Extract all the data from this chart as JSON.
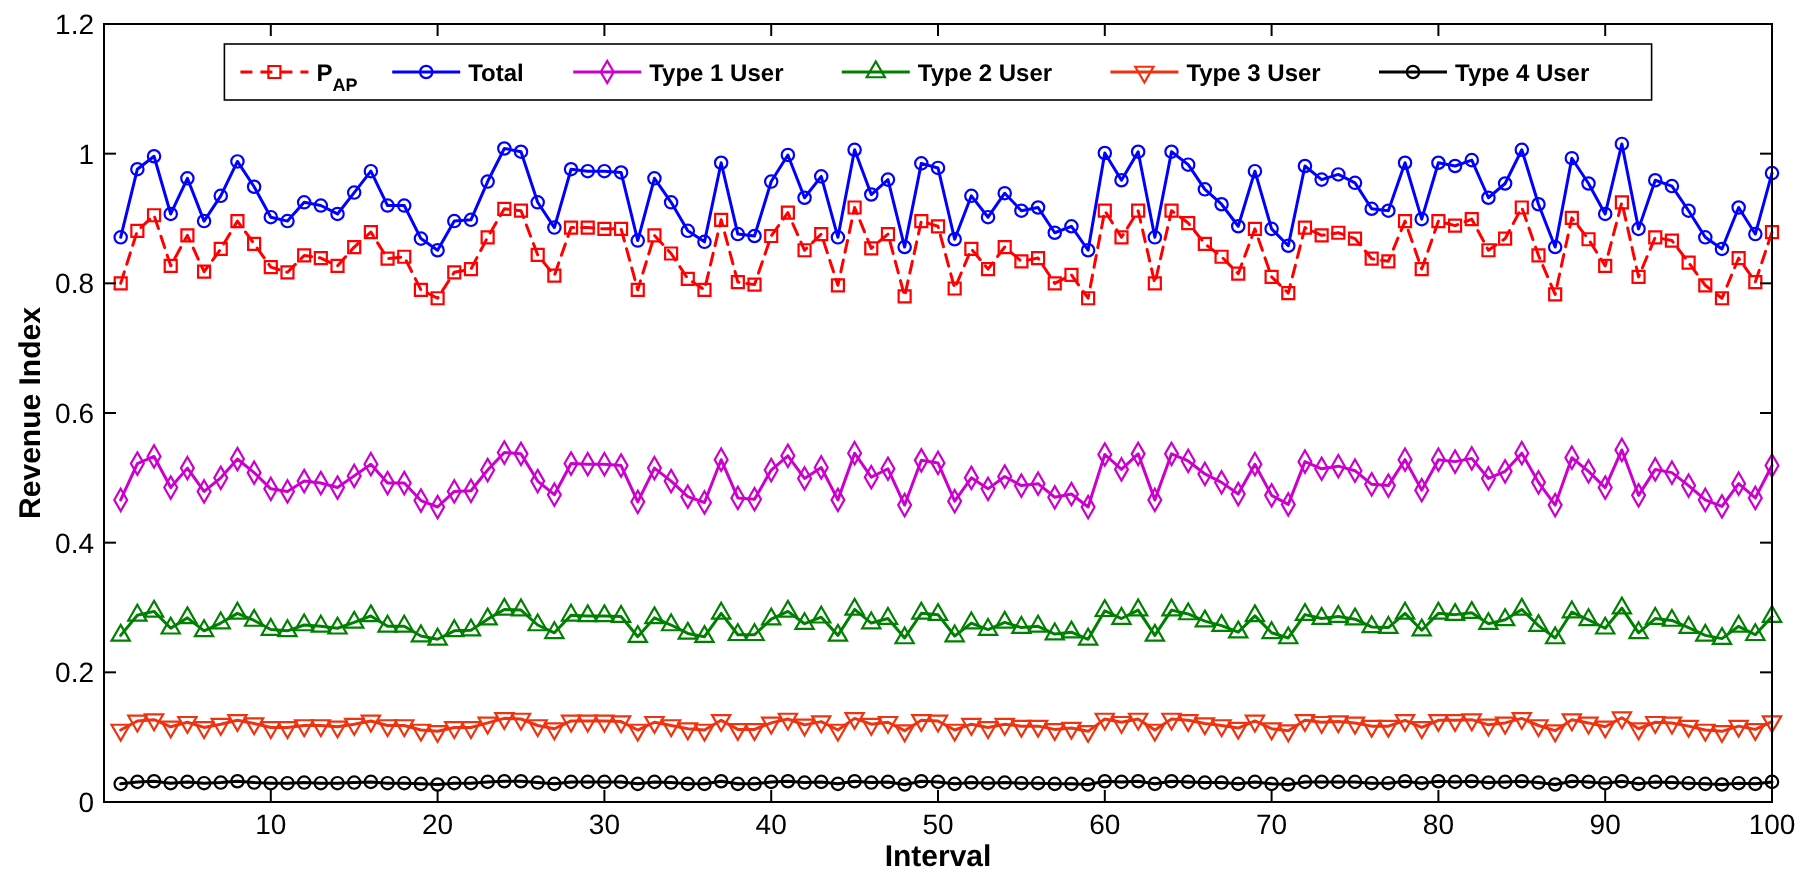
{
  "chart_data": {
    "type": "line",
    "xlabel": "Interval",
    "ylabel": "Revenue Index",
    "x": [
      1,
      2,
      3,
      4,
      5,
      6,
      7,
      8,
      9,
      10,
      11,
      12,
      13,
      14,
      15,
      16,
      17,
      18,
      19,
      20,
      21,
      22,
      23,
      24,
      25,
      26,
      27,
      28,
      29,
      30,
      31,
      32,
      33,
      34,
      35,
      36,
      37,
      38,
      39,
      40,
      41,
      42,
      43,
      44,
      45,
      46,
      47,
      48,
      49,
      50,
      51,
      52,
      53,
      54,
      55,
      56,
      57,
      58,
      59,
      60,
      61,
      62,
      63,
      64,
      65,
      66,
      67,
      68,
      69,
      70,
      71,
      72,
      73,
      74,
      75,
      76,
      77,
      78,
      79,
      80,
      81,
      82,
      83,
      84,
      85,
      86,
      87,
      88,
      89,
      90,
      91,
      92,
      93,
      94,
      95,
      96,
      97,
      98,
      99,
      100
    ],
    "xlim": [
      0,
      100
    ],
    "xticks": [
      10,
      20,
      30,
      40,
      50,
      60,
      70,
      80,
      90,
      100
    ],
    "ylim": [
      0,
      1.2
    ],
    "yticks": [
      0,
      0.2,
      0.4,
      0.6,
      0.8,
      1,
      1.2
    ],
    "grid": false,
    "legend": "top",
    "series": [
      {
        "name": "P$_{AP}$",
        "color": "#ff0000",
        "marker": "square",
        "line_style": "dashed",
        "values": [
          0.8,
          0.881,
          0.905,
          0.827,
          0.874,
          0.818,
          0.853,
          0.896,
          0.861,
          0.825,
          0.817,
          0.843,
          0.839,
          0.827,
          0.856,
          0.879,
          0.838,
          0.841,
          0.79,
          0.777,
          0.817,
          0.822,
          0.871,
          0.915,
          0.912,
          0.844,
          0.812,
          0.886,
          0.886,
          0.884,
          0.884,
          0.79,
          0.874,
          0.846,
          0.807,
          0.79,
          0.898,
          0.802,
          0.798,
          0.873,
          0.909,
          0.851,
          0.876,
          0.797,
          0.917,
          0.854,
          0.876,
          0.78,
          0.896,
          0.888,
          0.792,
          0.853,
          0.822,
          0.856,
          0.834,
          0.839,
          0.8,
          0.813,
          0.777,
          0.912,
          0.871,
          0.912,
          0.8,
          0.912,
          0.893,
          0.861,
          0.841,
          0.815,
          0.884,
          0.81,
          0.785,
          0.886,
          0.874,
          0.878,
          0.869,
          0.838,
          0.834,
          0.896,
          0.822,
          0.896,
          0.889,
          0.899,
          0.851,
          0.869,
          0.917,
          0.843,
          0.783,
          0.901,
          0.868,
          0.827,
          0.925,
          0.81,
          0.871,
          0.866,
          0.832,
          0.797,
          0.777,
          0.839,
          0.802,
          0.879
        ]
      },
      {
        "name": "Total",
        "color": "#0000ff",
        "marker": "circle",
        "line_style": "solid",
        "values": [
          0.871,
          0.976,
          0.996,
          0.907,
          0.962,
          0.896,
          0.935,
          0.988,
          0.949,
          0.902,
          0.896,
          0.925,
          0.92,
          0.907,
          0.94,
          0.973,
          0.92,
          0.92,
          0.869,
          0.851,
          0.896,
          0.898,
          0.957,
          1.008,
          1.003,
          0.925,
          0.886,
          0.976,
          0.973,
          0.973,
          0.971,
          0.866,
          0.962,
          0.925,
          0.881,
          0.864,
          0.986,
          0.876,
          0.873,
          0.957,
          0.998,
          0.932,
          0.965,
          0.871,
          1.006,
          0.937,
          0.96,
          0.856,
          0.985,
          0.978,
          0.868,
          0.935,
          0.902,
          0.939,
          0.912,
          0.917,
          0.878,
          0.888,
          0.851,
          1.001,
          0.959,
          1.003,
          0.871,
          1.003,
          0.983,
          0.945,
          0.922,
          0.888,
          0.973,
          0.884,
          0.858,
          0.981,
          0.96,
          0.968,
          0.955,
          0.915,
          0.912,
          0.986,
          0.899,
          0.986,
          0.981,
          0.99,
          0.932,
          0.954,
          1.006,
          0.922,
          0.856,
          0.993,
          0.954,
          0.907,
          1.015,
          0.884,
          0.959,
          0.95,
          0.912,
          0.871,
          0.853,
          0.917,
          0.876,
          0.97
        ]
      },
      {
        "name": "Type 1 User",
        "color": "#cc00cc",
        "marker": "diamond",
        "line_style": "solid",
        "values": [
          0.466,
          0.522,
          0.533,
          0.485,
          0.515,
          0.479,
          0.5,
          0.529,
          0.508,
          0.483,
          0.479,
          0.495,
          0.492,
          0.485,
          0.503,
          0.521,
          0.492,
          0.492,
          0.465,
          0.455,
          0.479,
          0.48,
          0.512,
          0.539,
          0.537,
          0.495,
          0.474,
          0.522,
          0.521,
          0.521,
          0.519,
          0.463,
          0.515,
          0.495,
          0.471,
          0.462,
          0.528,
          0.469,
          0.467,
          0.512,
          0.534,
          0.499,
          0.516,
          0.466,
          0.538,
          0.501,
          0.514,
          0.458,
          0.527,
          0.523,
          0.464,
          0.5,
          0.483,
          0.502,
          0.488,
          0.491,
          0.47,
          0.475,
          0.455,
          0.536,
          0.513,
          0.537,
          0.466,
          0.537,
          0.526,
          0.506,
          0.493,
          0.475,
          0.521,
          0.473,
          0.459,
          0.525,
          0.514,
          0.518,
          0.511,
          0.49,
          0.488,
          0.528,
          0.481,
          0.528,
          0.525,
          0.53,
          0.499,
          0.51,
          0.538,
          0.493,
          0.458,
          0.531,
          0.51,
          0.485,
          0.543,
          0.473,
          0.513,
          0.508,
          0.488,
          0.466,
          0.456,
          0.491,
          0.469,
          0.519
        ]
      },
      {
        "name": "Type 2 User",
        "color": "#008000",
        "marker": "triangle",
        "line_style": "solid",
        "values": [
          0.257,
          0.288,
          0.294,
          0.268,
          0.284,
          0.264,
          0.276,
          0.291,
          0.28,
          0.266,
          0.264,
          0.273,
          0.271,
          0.268,
          0.277,
          0.287,
          0.271,
          0.271,
          0.256,
          0.251,
          0.264,
          0.265,
          0.282,
          0.297,
          0.296,
          0.273,
          0.261,
          0.288,
          0.287,
          0.287,
          0.286,
          0.255,
          0.284,
          0.273,
          0.26,
          0.255,
          0.291,
          0.258,
          0.258,
          0.282,
          0.294,
          0.275,
          0.285,
          0.257,
          0.297,
          0.276,
          0.283,
          0.253,
          0.291,
          0.289,
          0.256,
          0.276,
          0.266,
          0.277,
          0.269,
          0.271,
          0.259,
          0.262,
          0.251,
          0.295,
          0.283,
          0.296,
          0.257,
          0.296,
          0.29,
          0.279,
          0.272,
          0.262,
          0.287,
          0.261,
          0.253,
          0.289,
          0.283,
          0.286,
          0.282,
          0.27,
          0.269,
          0.291,
          0.265,
          0.291,
          0.289,
          0.292,
          0.275,
          0.281,
          0.297,
          0.272,
          0.253,
          0.293,
          0.281,
          0.268,
          0.299,
          0.261,
          0.283,
          0.28,
          0.269,
          0.257,
          0.252,
          0.271,
          0.258,
          0.286
        ]
      },
      {
        "name": "Type 3 User",
        "color": "#ee3311",
        "marker": "triangle-down",
        "line_style": "solid",
        "values": [
          0.111,
          0.125,
          0.127,
          0.116,
          0.123,
          0.115,
          0.12,
          0.126,
          0.121,
          0.115,
          0.115,
          0.118,
          0.118,
          0.116,
          0.12,
          0.125,
          0.118,
          0.118,
          0.111,
          0.109,
          0.115,
          0.115,
          0.122,
          0.129,
          0.128,
          0.118,
          0.113,
          0.125,
          0.125,
          0.125,
          0.124,
          0.111,
          0.123,
          0.118,
          0.113,
          0.111,
          0.126,
          0.112,
          0.112,
          0.122,
          0.128,
          0.119,
          0.124,
          0.111,
          0.129,
          0.12,
          0.123,
          0.11,
          0.126,
          0.125,
          0.111,
          0.12,
          0.115,
          0.12,
          0.117,
          0.117,
          0.112,
          0.114,
          0.109,
          0.128,
          0.123,
          0.128,
          0.111,
          0.128,
          0.126,
          0.121,
          0.118,
          0.114,
          0.125,
          0.113,
          0.11,
          0.126,
          0.123,
          0.124,
          0.122,
          0.117,
          0.117,
          0.126,
          0.115,
          0.126,
          0.126,
          0.127,
          0.119,
          0.122,
          0.129,
          0.118,
          0.11,
          0.127,
          0.122,
          0.116,
          0.13,
          0.113,
          0.123,
          0.122,
          0.117,
          0.111,
          0.109,
          0.117,
          0.112,
          0.124
        ]
      },
      {
        "name": "Type 4 User",
        "color": "#000000",
        "marker": "circle",
        "line_style": "solid",
        "values": [
          0.028,
          0.031,
          0.032,
          0.029,
          0.031,
          0.029,
          0.03,
          0.032,
          0.03,
          0.029,
          0.029,
          0.03,
          0.029,
          0.029,
          0.03,
          0.031,
          0.029,
          0.029,
          0.028,
          0.027,
          0.029,
          0.029,
          0.031,
          0.032,
          0.032,
          0.03,
          0.028,
          0.031,
          0.031,
          0.031,
          0.031,
          0.028,
          0.031,
          0.03,
          0.028,
          0.028,
          0.032,
          0.028,
          0.028,
          0.031,
          0.032,
          0.03,
          0.031,
          0.028,
          0.032,
          0.03,
          0.031,
          0.027,
          0.032,
          0.031,
          0.028,
          0.03,
          0.029,
          0.03,
          0.029,
          0.029,
          0.028,
          0.028,
          0.027,
          0.032,
          0.031,
          0.032,
          0.028,
          0.032,
          0.031,
          0.03,
          0.03,
          0.028,
          0.031,
          0.028,
          0.027,
          0.031,
          0.031,
          0.031,
          0.031,
          0.029,
          0.029,
          0.032,
          0.029,
          0.032,
          0.031,
          0.032,
          0.03,
          0.031,
          0.032,
          0.03,
          0.027,
          0.032,
          0.031,
          0.029,
          0.032,
          0.028,
          0.031,
          0.03,
          0.029,
          0.028,
          0.027,
          0.029,
          0.028,
          0.031
        ]
      }
    ]
  }
}
